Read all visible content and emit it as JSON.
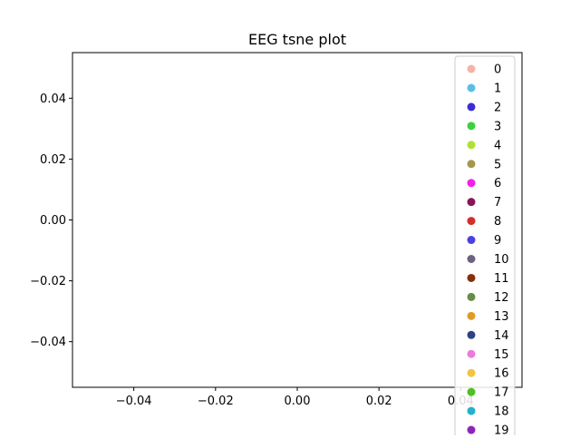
{
  "chart_data": {
    "type": "scatter",
    "title": "EEG tsne plot",
    "xlabel": "",
    "ylabel": "",
    "xlim": [
      -0.055,
      0.055
    ],
    "ylim": [
      -0.055,
      0.055
    ],
    "x_ticks": [
      -0.04,
      -0.02,
      0.0,
      0.02,
      0.04
    ],
    "x_tick_labels": [
      "−0.04",
      "−0.02",
      "0.00",
      "0.02",
      "0.04"
    ],
    "y_ticks": [
      0.04,
      0.02,
      0.0,
      -0.02,
      -0.04
    ],
    "y_tick_labels": [
      "0.04",
      "0.02",
      "0.00",
      "−0.02",
      "−0.04"
    ],
    "grid": false,
    "legend_position": "top-right",
    "series": [
      {
        "name": "0",
        "color": "#f4b3a8",
        "points": []
      },
      {
        "name": "1",
        "color": "#5bbde8",
        "points": []
      },
      {
        "name": "2",
        "color": "#3a2ed3",
        "points": []
      },
      {
        "name": "3",
        "color": "#3fcf3f",
        "points": []
      },
      {
        "name": "4",
        "color": "#b2df33",
        "points": []
      },
      {
        "name": "5",
        "color": "#a6964a",
        "points": []
      },
      {
        "name": "6",
        "color": "#f21fee",
        "points": []
      },
      {
        "name": "7",
        "color": "#8b1457",
        "points": []
      },
      {
        "name": "8",
        "color": "#d22e2e",
        "points": []
      },
      {
        "name": "9",
        "color": "#4a41e3",
        "points": []
      },
      {
        "name": "10",
        "color": "#6c6180",
        "points": []
      },
      {
        "name": "11",
        "color": "#85310d",
        "points": []
      },
      {
        "name": "12",
        "color": "#6a8c48",
        "points": []
      },
      {
        "name": "13",
        "color": "#de9b2a",
        "points": []
      },
      {
        "name": "14",
        "color": "#2f4383",
        "points": []
      },
      {
        "name": "15",
        "color": "#ef7ad9",
        "points": []
      },
      {
        "name": "16",
        "color": "#f2c444",
        "points": []
      },
      {
        "name": "17",
        "color": "#50be26",
        "points": []
      },
      {
        "name": "18",
        "color": "#22b2cc",
        "points": []
      },
      {
        "name": "19",
        "color": "#8e25b9",
        "points": []
      }
    ]
  }
}
